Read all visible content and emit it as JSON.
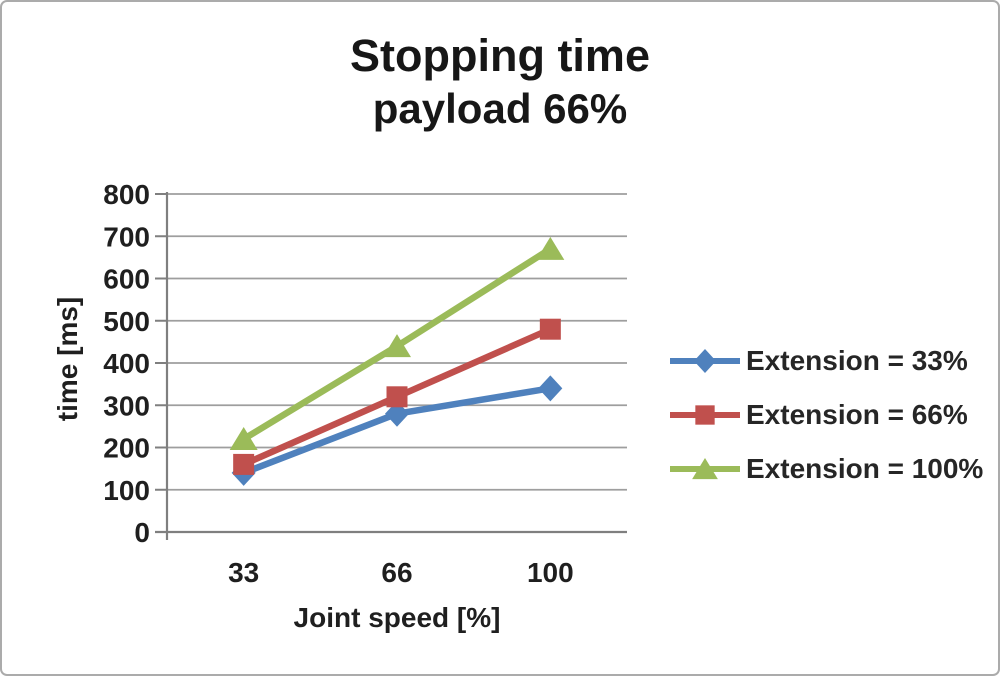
{
  "chart_data": {
    "type": "line",
    "title": "Stopping time",
    "subtitle": "payload 66%",
    "xlabel": "Joint speed [%]",
    "ylabel": "time [ms]",
    "categories": [
      "33",
      "66",
      "100"
    ],
    "y_ticks": [
      "0",
      "100",
      "200",
      "300",
      "400",
      "500",
      "600",
      "700",
      "800"
    ],
    "ylim": [
      0,
      800
    ],
    "grid": true,
    "legend_position": "right",
    "series": [
      {
        "name": "Extension = 33%",
        "marker": "diamond",
        "color": "#4F81BD",
        "values": [
          140,
          280,
          340
        ]
      },
      {
        "name": "Extension = 66%",
        "marker": "square",
        "color": "#C0504D",
        "values": [
          160,
          320,
          480
        ]
      },
      {
        "name": "Extension = 100%",
        "marker": "triangle",
        "color": "#9BBB59",
        "values": [
          220,
          440,
          670
        ]
      }
    ]
  },
  "colors": {
    "axis": "#7f7f7f",
    "grid": "#9e9e9e",
    "text": "#1f1f1f",
    "frame_border": "#ababab"
  }
}
